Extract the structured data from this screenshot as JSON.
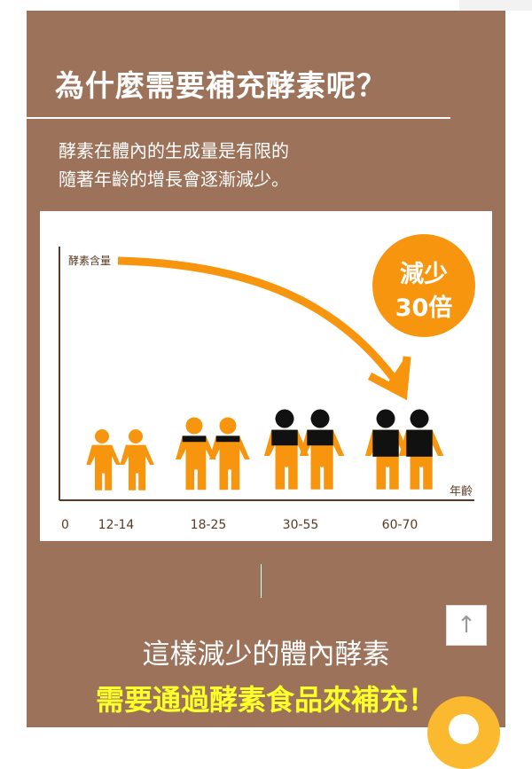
{
  "title": "為什麼需要補充酵素呢？",
  "intro": [
    "酵素在體內的生成量是有限的",
    "隨著年齡的增長會逐漸減少。"
  ],
  "chart": {
    "y_axis_label": "酵素含量",
    "x_axis_label": "年齡",
    "origin_label": "0",
    "age_groups": [
      "12-14",
      "18-25",
      "30-55",
      "60-70"
    ],
    "badge_line1": "減少",
    "badge_line2": "30倍"
  },
  "conclusion": {
    "line1": "這樣減少的體內酵素",
    "line2": "需要通過酵素食品來補充！"
  },
  "colors": {
    "brown": "#9c735a",
    "orange": "#f7960e",
    "yellow": "#ffff2a"
  },
  "icons": {
    "back_to_top": "arrow-up-icon",
    "chat": "chat-icon"
  }
}
